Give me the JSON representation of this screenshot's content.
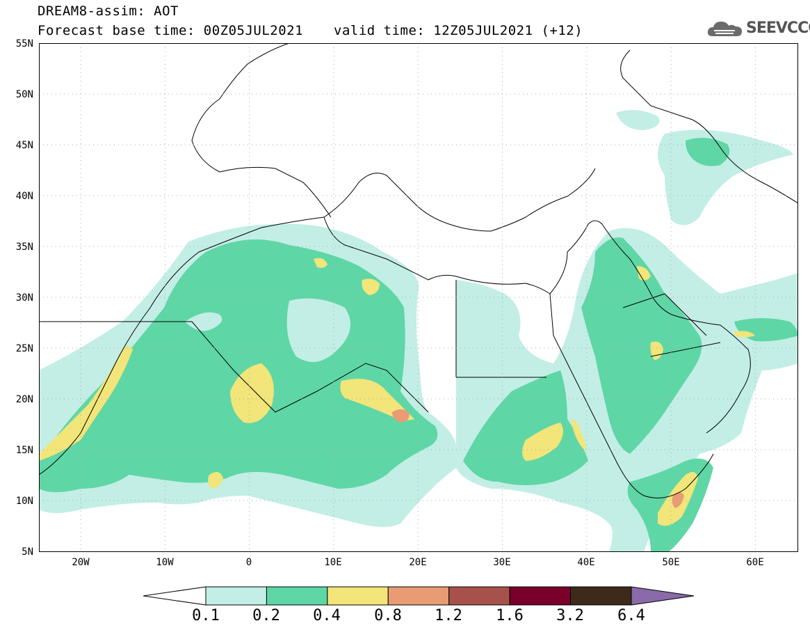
{
  "header": {
    "title_line_1": "DREAM8-assim: AOT",
    "title_line_2": "Forecast base time: 00Z05JUL2021",
    "valid_time": "valid time: 12Z05JUL2021 (+12)"
  },
  "logo": {
    "text": "SEEVCCC",
    "icon": "cloud-icon"
  },
  "map": {
    "lat_labels": [
      "55N",
      "50N",
      "45N",
      "40N",
      "35N",
      "30N",
      "25N",
      "20N",
      "15N",
      "10N",
      "5N"
    ],
    "lon_labels": [
      "20W",
      "10W",
      "0",
      "10E",
      "20E",
      "30E",
      "40E",
      "50E",
      "60E"
    ]
  },
  "colorbar": {
    "labels": [
      "0.1",
      "0.2",
      "0.4",
      "0.8",
      "1.2",
      "1.6",
      "3.2",
      "6.4"
    ],
    "colors": [
      "#c2eee5",
      "#5fd6a6",
      "#f2e57a",
      "#e99b73",
      "#a6524b",
      "#78002a",
      "#3d2a1a",
      "#8a6aa8"
    ]
  }
}
